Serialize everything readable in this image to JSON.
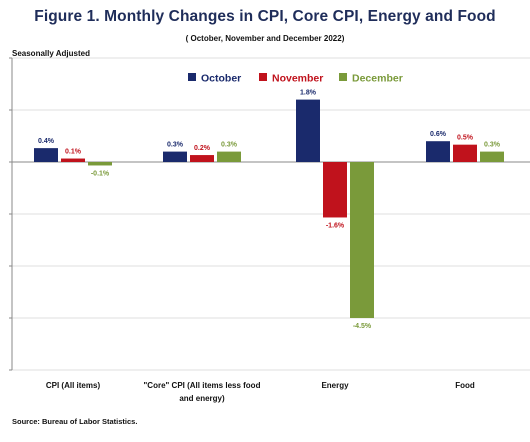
{
  "title": "Figure 1. Monthly Changes in CPI, Core CPI, Energy and Food",
  "subtitle": "( October, November and December 2022)",
  "y_axis_note": "Seasonally Adjusted",
  "source": "Source: Bureau of Labor Statistics.",
  "colors": {
    "October": "#1a2a6c",
    "November": "#c0121c",
    "December": "#7a9a3a"
  },
  "chart_data": {
    "type": "bar",
    "title": "Figure 1. Monthly Changes in CPI, Core CPI, Energy and Food",
    "subtitle": "( October, November and December 2022)",
    "categories": [
      [
        "CPI (All items)"
      ],
      [
        "\"Core\" CPI (All items less food",
        "and energy)"
      ],
      [
        "Energy"
      ],
      [
        "Food"
      ]
    ],
    "series": [
      {
        "name": "October",
        "values": [
          0.4,
          0.3,
          1.8,
          0.6
        ],
        "labels": [
          "0.4%",
          "0.3%",
          "1.8%",
          "0.6%"
        ]
      },
      {
        "name": "November",
        "values": [
          0.1,
          0.2,
          -1.6,
          0.5
        ],
        "labels": [
          "0.1%",
          "0.2%",
          "-1.6%",
          "0.5%"
        ]
      },
      {
        "name": "December",
        "values": [
          -0.1,
          0.3,
          -4.5,
          0.3
        ],
        "labels": [
          "-0.1%",
          "0.3%",
          "-4.5%",
          "0.3%"
        ]
      }
    ],
    "ylim": [
      -6,
      3
    ],
    "grid": true,
    "legend_position": "top"
  }
}
